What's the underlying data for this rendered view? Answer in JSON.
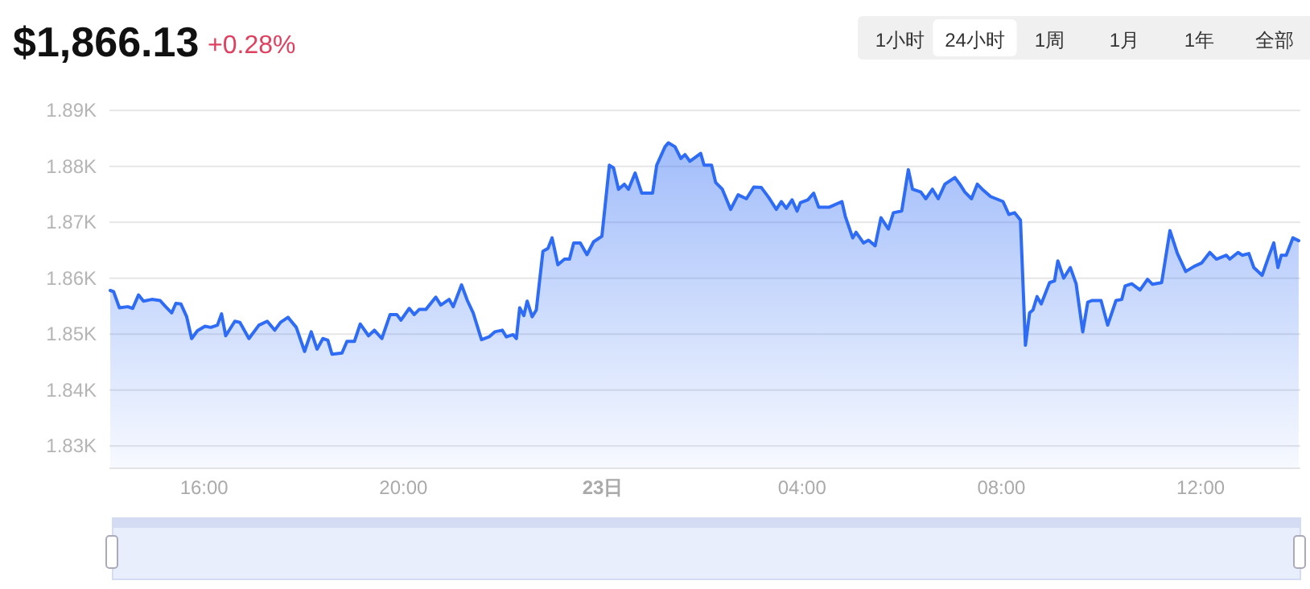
{
  "chart_data": {
    "type": "area",
    "title": "$1,866.13",
    "subtitle": "+0.28%",
    "annotations": [
      "1小时",
      "24小时",
      "1周",
      "1月",
      "1年",
      "全部"
    ],
    "x": [
      "--06-22T14:07",
      "--06-22T14:11",
      "--06-22T14:18",
      "--06-22T14:28",
      "--06-22T14:34",
      "--06-22T14:41",
      "--06-22T14:47",
      "--06-22T14:57",
      "--06-22T15:07",
      "--06-22T15:13",
      "--06-22T15:21",
      "--06-22T15:26",
      "--06-22T15:32",
      "--06-22T15:39",
      "--06-22T15:45",
      "--06-22T15:52",
      "--06-22T16:01",
      "--06-22T16:08",
      "--06-22T16:16",
      "--06-22T16:21",
      "--06-22T16:26",
      "--06-22T16:37",
      "--06-22T16:43",
      "--06-22T16:54",
      "--06-22T17:06",
      "--06-22T17:16",
      "--06-22T17:25",
      "--06-22T17:32",
      "--06-22T17:41",
      "--06-22T17:51",
      "--06-22T18:01",
      "--06-22T18:09",
      "--06-22T18:16",
      "--06-22T18:23",
      "--06-22T18:29",
      "--06-22T18:34",
      "--06-22T18:46",
      "--06-22T18:52",
      "--06-22T19:01",
      "--06-22T19:08",
      "--06-22T19:18",
      "--06-22T19:25",
      "--06-22T19:34",
      "--06-22T19:44",
      "--06-22T19:52",
      "--06-22T19:57",
      "--06-22T20:07",
      "--06-22T20:13",
      "--06-22T20:19",
      "--06-22T20:27",
      "--06-22T20:39",
      "--06-22T20:45",
      "--06-22T20:55",
      "--06-22T21:00",
      "--06-22T21:10",
      "--06-22T21:17",
      "--06-22T21:24",
      "--06-22T21:34",
      "--06-22T21:43",
      "--06-22T21:50",
      "--06-22T21:59",
      "--06-22T22:04",
      "--06-22T22:12",
      "--06-22T22:16",
      "--06-22T22:20",
      "--06-22T22:25",
      "--06-22T22:29",
      "--06-22T22:35",
      "--06-22T22:40",
      "--06-22T22:48",
      "--06-22T22:54",
      "--06-22T22:59",
      "--06-22T23:06",
      "--06-22T23:14",
      "--06-22T23:20",
      "--06-22T23:25",
      "--06-22T23:33",
      "--06-22T23:41",
      "--06-22T23:49",
      "--06-22T23:59",
      "--06-23T00:08",
      "--06-23T00:13",
      "--06-23T00:19",
      "--06-23T00:26",
      "--06-23T00:31",
      "--06-23T00:39",
      "--06-23T00:47",
      "--06-23T01:00",
      "--06-23T01:05",
      "--06-23T01:15",
      "--06-23T01:19",
      "--06-23T01:27",
      "--06-23T01:34",
      "--06-23T01:39",
      "--06-23T01:45",
      "--06-23T01:58",
      "--06-23T02:02",
      "--06-23T02:11",
      "--06-23T02:16",
      "--06-23T02:24",
      "--06-23T02:34",
      "--06-23T02:43",
      "--06-23T02:53",
      "--06-23T03:02",
      "--06-23T03:11",
      "--06-23T03:20",
      "--06-23T03:29",
      "--06-23T03:35",
      "--06-23T03:41",
      "--06-23T03:48",
      "--06-23T03:54",
      "--06-23T03:58",
      "--06-23T04:07",
      "--06-23T04:14",
      "--06-23T04:20",
      "--06-23T04:33",
      "--06-23T04:48",
      "--06-23T04:52",
      "--06-23T05:01",
      "--06-23T05:05",
      "--06-23T05:14",
      "--06-23T05:20",
      "--06-23T05:28",
      "--06-23T05:35",
      "--06-23T05:44",
      "--06-23T05:50",
      "--06-23T06:00",
      "--06-23T06:08",
      "--06-23T06:13",
      "--06-23T06:23",
      "--06-23T06:29",
      "--06-23T06:37",
      "--06-23T06:44",
      "--06-23T06:52",
      "--06-23T07:04",
      "--06-23T07:10",
      "--06-23T07:16",
      "--06-23T07:24",
      "--06-23T07:31",
      "--06-23T07:37",
      "--06-23T07:47",
      "--06-23T08:02",
      "--06-23T08:09",
      "--06-23T08:16",
      "--06-23T08:23",
      "--06-23T08:29",
      "--06-23T08:34",
      "--06-23T08:38",
      "--06-23T08:43",
      "--06-23T08:48",
      "--06-23T08:58",
      "--06-23T09:04",
      "--06-23T09:08",
      "--06-23T09:15",
      "--06-23T09:23",
      "--06-23T09:30",
      "--06-23T09:38",
      "--06-23T09:44",
      "--06-23T09:49",
      "--06-23T10:00",
      "--06-23T10:08",
      "--06-23T10:18",
      "--06-23T10:25",
      "--06-23T10:29",
      "--06-23T10:37",
      "--06-23T10:47",
      "--06-23T10:56",
      "--06-23T11:02",
      "--06-23T11:13",
      "--06-23T11:23",
      "--06-23T11:32",
      "--06-23T11:42",
      "--06-23T11:52",
      "--06-23T12:01",
      "--06-23T12:11",
      "--06-23T12:19",
      "--06-23T12:31",
      "--06-23T12:35",
      "--06-23T12:45",
      "--06-23T12:50",
      "--06-23T12:58",
      "--06-23T13:04",
      "--06-23T13:14",
      "--06-23T13:22",
      "--06-23T13:28",
      "--06-23T13:33",
      "--06-23T13:37",
      "--06-23T13:43",
      "--06-23T13:51",
      "--06-23T13:58"
    ],
    "series": [
      {
        "color": "#2f6cf5",
        "values": [
          1857.8,
          1857.6,
          1854.7,
          1854.9,
          1854.6,
          1857.0,
          1855.9,
          1856.2,
          1856.0,
          1855.0,
          1853.8,
          1855.5,
          1855.4,
          1853.1,
          1849.2,
          1850.6,
          1851.4,
          1851.2,
          1851.6,
          1853.6,
          1849.7,
          1852.3,
          1852.1,
          1849.2,
          1851.6,
          1852.3,
          1850.7,
          1852.1,
          1853.0,
          1851.2,
          1846.9,
          1850.4,
          1847.3,
          1849.2,
          1848.9,
          1846.4,
          1846.6,
          1848.7,
          1848.7,
          1851.8,
          1849.7,
          1850.7,
          1849.2,
          1853.5,
          1853.5,
          1852.5,
          1854.6,
          1853.5,
          1854.4,
          1854.4,
          1856.6,
          1855.2,
          1856.2,
          1854.9,
          1858.8,
          1856.0,
          1853.8,
          1849.0,
          1849.5,
          1850.4,
          1850.7,
          1849.5,
          1849.9,
          1849.2,
          1854.7,
          1853.3,
          1855.9,
          1853.1,
          1854.3,
          1864.8,
          1865.3,
          1867.2,
          1862.4,
          1863.4,
          1863.4,
          1866.3,
          1866.3,
          1864.2,
          1866.5,
          1867.5,
          1880.2,
          1879.7,
          1875.9,
          1876.8,
          1875.9,
          1878.8,
          1875.2,
          1875.2,
          1880.2,
          1883.5,
          1884.2,
          1883.5,
          1881.4,
          1882.1,
          1880.9,
          1882.3,
          1880.2,
          1880.2,
          1877.1,
          1875.9,
          1872.3,
          1874.9,
          1874.2,
          1876.3,
          1876.2,
          1874.4,
          1872.3,
          1873.7,
          1872.5,
          1874.0,
          1872.0,
          1873.5,
          1874.0,
          1875.2,
          1872.7,
          1872.7,
          1873.7,
          1871.1,
          1867.2,
          1868.2,
          1866.3,
          1866.8,
          1865.8,
          1870.8,
          1868.8,
          1871.7,
          1872.0,
          1879.4,
          1875.9,
          1875.4,
          1874.2,
          1875.9,
          1874.2,
          1876.8,
          1878.0,
          1876.8,
          1875.4,
          1874.2,
          1876.8,
          1875.9,
          1874.6,
          1873.7,
          1871.4,
          1871.7,
          1870.4,
          1848.0,
          1853.8,
          1854.3,
          1856.7,
          1855.4,
          1859.2,
          1859.5,
          1863.1,
          1860.0,
          1861.9,
          1859.0,
          1850.4,
          1855.7,
          1856.0,
          1856.0,
          1851.6,
          1856.0,
          1856.2,
          1858.6,
          1859.0,
          1857.9,
          1859.8,
          1858.9,
          1859.2,
          1868.5,
          1864.4,
          1861.2,
          1862.1,
          1862.7,
          1864.6,
          1863.4,
          1864.1,
          1863.4,
          1864.6,
          1864.1,
          1864.4,
          1861.9,
          1860.5,
          1863.9,
          1866.3,
          1861.9,
          1864.1,
          1864.1,
          1867.2,
          1866.7
        ]
      }
    ],
    "xlim": [
      "--06-22T14:06",
      "--06-23T14:00"
    ],
    "xticks": [
      {
        "value": "--06-22T16:00",
        "label": "16:00"
      },
      {
        "value": "--06-22T20:00",
        "label": "20:00"
      },
      {
        "value": "--06-23T00:00",
        "label": "23日"
      },
      {
        "value": "--06-23T04:00",
        "label": "04:00"
      },
      {
        "value": "--06-23T08:00",
        "label": "08:00"
      },
      {
        "value": "--06-23T12:00",
        "label": "12:00"
      }
    ],
    "ylim": [
      1826,
      1890
    ],
    "yticks": [
      {
        "value": 1830,
        "label": "1.83K"
      },
      {
        "value": 1840,
        "label": "1.84K"
      },
      {
        "value": 1850,
        "label": "1.85K"
      },
      {
        "value": 1860,
        "label": "1.86K"
      },
      {
        "value": 1870,
        "label": "1.87K"
      },
      {
        "value": 1880,
        "label": "1.88K"
      },
      {
        "value": 1890,
        "label": "1.89K"
      }
    ],
    "grid": "y",
    "marker": "none",
    "line_style": "solid"
  }
}
